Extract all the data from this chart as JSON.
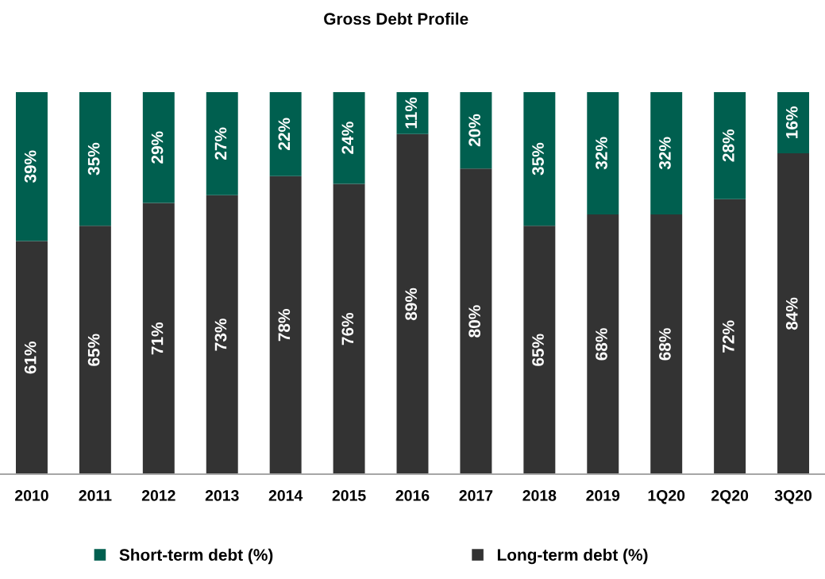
{
  "chart_data": {
    "type": "bar",
    "title": "Gross Debt Profile",
    "stacked": true,
    "legend": "bottom",
    "grid": false,
    "categories": [
      "2010",
      "2011",
      "2012",
      "2013",
      "2014",
      "2015",
      "2016",
      "2017",
      "2018",
      "2019",
      "1Q20",
      "2Q20",
      "3Q20"
    ],
    "series": [
      {
        "name": "Long-term debt (%)",
        "color": "#333333",
        "values": [
          61,
          65,
          71,
          73,
          78,
          76,
          89,
          80,
          65,
          68,
          68,
          72,
          84
        ],
        "value_labels": [
          "61%",
          "65%",
          "71%",
          "73%",
          "78%",
          "76%",
          "89%",
          "80%",
          "65%",
          "68%",
          "68%",
          "72%",
          "84%"
        ]
      },
      {
        "name": "Short-term debt (%)",
        "color": "#005f4f",
        "values": [
          39,
          35,
          29,
          27,
          22,
          24,
          11,
          20,
          35,
          32,
          32,
          28,
          16
        ],
        "value_labels": [
          "39%",
          "35%",
          "29%",
          "27%",
          "22%",
          "24%",
          "11%",
          "20%",
          "35%",
          "32%",
          "32%",
          "28%",
          "16%"
        ]
      }
    ]
  }
}
